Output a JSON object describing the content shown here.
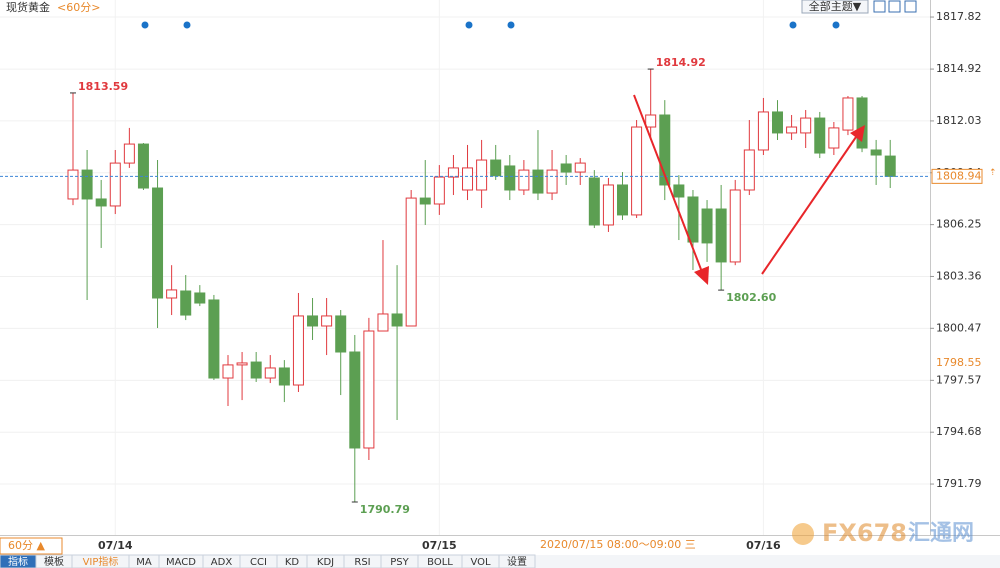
{
  "chart_data": {
    "type": "candlestick",
    "title": "现货黄金",
    "subtitle": "<60分>",
    "categories": [
      null,
      null,
      null,
      "07/14",
      null,
      null,
      null,
      null,
      null,
      null,
      null,
      null,
      null,
      null,
      null,
      null,
      null,
      null,
      null,
      null,
      null,
      null,
      null,
      null,
      null,
      null,
      "07/15",
      null,
      null,
      null,
      null,
      null,
      null,
      null,
      null,
      null,
      null,
      null,
      null,
      null,
      null,
      null,
      null,
      null,
      null,
      null,
      null,
      null,
      null,
      "07/16",
      null,
      null,
      null,
      null,
      null,
      null,
      null,
      null,
      null
    ],
    "open": [
      1807.68,
      1809.29,
      1807.68,
      1807.29,
      1809.68,
      1810.74,
      1808.29,
      1802.16,
      1802.55,
      1802.44,
      1802.05,
      1797.7,
      1798.43,
      1798.59,
      1797.7,
      1798.26,
      1797.31,
      1801.16,
      1800.6,
      1801.16,
      1799.15,
      1793.8,
      1800.32,
      1801.27,
      1800.6,
      1807.73,
      1807.4,
      1808.9,
      1808.18,
      1808.18,
      1809.85,
      1809.52,
      1808.18,
      1809.29,
      1808.01,
      1809.63,
      1809.18,
      1808.85,
      1806.23,
      1808.46,
      1806.79,
      1811.69,
      1812.36,
      1808.46,
      1807.79,
      1807.12,
      1807.12,
      1804.17,
      1808.18,
      1810.41,
      1812.53,
      1811.36,
      1811.36,
      1812.19,
      1810.52,
      1811.52,
      1813.31,
      1810.41,
      1810.07
    ],
    "high": [
      1813.59,
      1810.41,
      1808.74,
      1810.41,
      1811.64,
      1810.8,
      1809.85,
      1803.99,
      1803.44,
      1802.88,
      1802.33,
      1798.98,
      1799.15,
      1799.15,
      1798.98,
      1798.7,
      1802.44,
      1802.16,
      1802.16,
      1801.49,
      1800.1,
      1801.05,
      1805.39,
      1803.99,
      1808.18,
      1809.85,
      1809.57,
      1810.13,
      1810.69,
      1810.97,
      1810.69,
      1810.13,
      1809.85,
      1811.52,
      1810.41,
      1810.13,
      1809.96,
      1809.29,
      1808.85,
      1809.18,
      1812.08,
      1814.92,
      1813.19,
      1809.01,
      1808.18,
      1807.62,
      1808.46,
      1808.74,
      1812.08,
      1813.31,
      1813.19,
      1812.36,
      1812.64,
      1812.53,
      1811.97,
      1813.42,
      1813.42,
      1810.97,
      1810.97
    ],
    "low": [
      1807.34,
      1802.05,
      1804.95,
      1806.84,
      1809.41,
      1808.18,
      1800.49,
      1801.21,
      1800.93,
      1801.71,
      1797.59,
      1796.14,
      1796.47,
      1797.48,
      1797.42,
      1796.36,
      1796.92,
      1799.82,
      1798.98,
      1796.75,
      1790.79,
      1793.13,
      1800.32,
      1795.36,
      1800.6,
      1806.23,
      1806.79,
      1807.9,
      1807.62,
      1807.18,
      1808.74,
      1807.62,
      1807.9,
      1807.62,
      1807.62,
      1808.46,
      1808.46,
      1806.06,
      1805.84,
      1806.51,
      1806.62,
      1810.97,
      1807.62,
      1805.39,
      1803.72,
      1804.17,
      1802.6,
      1803.99,
      1807.9,
      1810.13,
      1810.97,
      1810.97,
      1810.52,
      1809.96,
      1810.13,
      1811.24,
      1810.29,
      1808.46,
      1808.29
    ],
    "close": [
      1809.29,
      1807.68,
      1807.29,
      1809.68,
      1810.74,
      1808.29,
      1802.16,
      1802.61,
      1801.21,
      1801.88,
      1797.7,
      1798.43,
      1798.54,
      1797.7,
      1798.26,
      1797.31,
      1801.16,
      1800.6,
      1801.16,
      1799.15,
      1793.8,
      1800.32,
      1801.27,
      1800.6,
      1807.73,
      1807.4,
      1808.9,
      1809.41,
      1809.41,
      1809.85,
      1808.97,
      1808.18,
      1809.29,
      1808.01,
      1809.29,
      1809.18,
      1809.68,
      1806.23,
      1808.46,
      1806.79,
      1811.69,
      1812.36,
      1808.46,
      1807.79,
      1805.28,
      1805.23,
      1804.17,
      1808.18,
      1810.41,
      1812.53,
      1811.36,
      1811.69,
      1812.19,
      1810.24,
      1811.64,
      1813.31,
      1810.52,
      1810.13,
      1808.94
    ],
    "up_color": "#e0393e",
    "down_color": "#5c9f52",
    "ylim": [
      1788.95,
      1818.77
    ],
    "yticks": [
      1817.82,
      1814.92,
      1812.03,
      1809.14,
      1806.25,
      1803.36,
      1800.47,
      1797.57,
      1794.68,
      1791.79
    ],
    "extreme_labels": [
      "1813.59",
      "1814.92",
      "1790.79",
      "1802.60"
    ],
    "last_price": 1808.94,
    "reference_price": 1798.55,
    "time_label": "2020/07/15 08:00～09:00 三"
  },
  "ui": {
    "period_button": "60分 ▲",
    "theme_button": "全部主题▼",
    "tabs": [
      "指标",
      "模板",
      "VIP指标",
      "MA",
      "MACD",
      "ADX",
      "CCI",
      "KD",
      "KDJ",
      "RSI",
      "PSY",
      "BOLL",
      "VOL",
      "设置"
    ],
    "watermark": "FX678",
    "watermark2": "汇通网"
  }
}
